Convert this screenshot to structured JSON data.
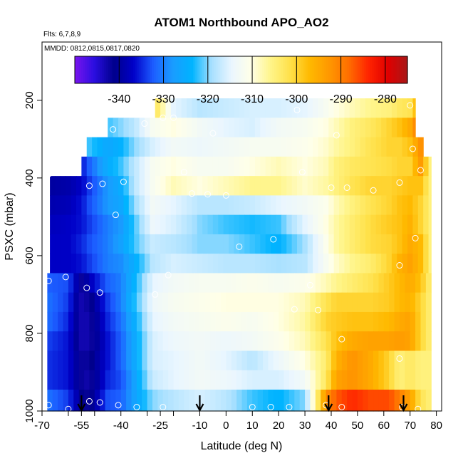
{
  "chart_data": {
    "type": "heatmap",
    "title": "ATOM1 Northbound APO_AO2",
    "annotations": [
      "Flts: 6,7,8,9",
      "MMDD: 0812,0815,0817,0820"
    ],
    "xlabel": "Latitude (deg N)",
    "ylabel": "PSXC (mbar)",
    "xlim": [
      -70,
      82
    ],
    "ylim": [
      1000,
      50
    ],
    "y_reversed": true,
    "x_ticks": [
      "-70",
      "-55",
      "-40",
      "-25",
      "-10",
      "0",
      "10",
      "20",
      "30",
      "40",
      "50",
      "60",
      "70",
      "80"
    ],
    "x_tick_values": [
      -70,
      -60,
      -55,
      -50,
      -40,
      -30,
      -25,
      -20,
      -10,
      0,
      10,
      20,
      30,
      40,
      50,
      60,
      70,
      80
    ],
    "x_tick_labels": [
      "-70",
      "",
      "-55",
      "",
      "-40",
      "",
      "-25",
      "",
      "-10",
      "0",
      "10",
      "20",
      "30",
      "40",
      "50",
      "60",
      "70",
      "80"
    ],
    "y_ticks": [
      "200",
      "400",
      "600",
      "800",
      "1000"
    ],
    "y_tick_values": [
      200,
      400,
      600,
      800,
      1000
    ],
    "colorbar": {
      "range": [
        -350,
        -275
      ],
      "ticks": [
        "-340",
        "-330",
        "-320",
        "-310",
        "-300",
        "-290",
        "-280"
      ],
      "tick_values": [
        -340,
        -330,
        -320,
        -310,
        -300,
        -290,
        -280
      ],
      "colors": [
        "#7a14ef",
        "#2a0ee0",
        "#00008c",
        "#0000c8",
        "#1c5cff",
        "#1a9cff",
        "#00b4ff",
        "#a8e0ff",
        "#eaf6ff",
        "#ffffe8",
        "#fff58a",
        "#ffe14a",
        "#ffb900",
        "#ff9800",
        "#ff6e00",
        "#ff2400",
        "#e00000",
        "#a81818"
      ]
    },
    "levels": [
      220,
      270,
      320,
      370,
      420,
      470,
      520,
      570,
      620,
      670,
      720,
      770,
      820,
      870,
      920,
      970
    ],
    "level_lat_ranges": [
      [
        -27,
        72
      ],
      [
        -45,
        72
      ],
      [
        -53,
        75
      ],
      [
        -55,
        78
      ],
      [
        -67,
        78
      ],
      [
        -67,
        78
      ],
      [
        -67,
        78
      ],
      [
        -67,
        78
      ],
      [
        -67,
        78
      ],
      [
        -68,
        78
      ],
      [
        -68,
        78
      ],
      [
        -68,
        78
      ],
      [
        -68,
        78
      ],
      [
        -68,
        78
      ],
      [
        -68,
        78
      ],
      [
        -68,
        78
      ]
    ],
    "profile_latitudes": [
      -70,
      -60,
      -55,
      -52,
      -45,
      -40,
      -35,
      -28,
      -20,
      -10,
      0,
      10,
      20,
      30,
      38,
      42,
      48,
      55,
      62,
      66,
      70,
      74,
      78
    ],
    "values": [
      [
        -300,
        -300,
        -300,
        -300,
        -300,
        -300,
        -300,
        -300,
        -315,
        -318,
        -317,
        -316,
        -316,
        -315,
        -312,
        -310,
        -308,
        -306,
        -305,
        -303,
        -302,
        -294,
        -290
      ],
      [
        -300,
        -300,
        -300,
        -300,
        -322,
        -320,
        -318,
        -312,
        -310,
        -313,
        -315,
        -316,
        -313,
        -312,
        -310,
        -308,
        -305,
        -303,
        -300,
        -298,
        -295,
        -288,
        -288
      ],
      [
        -300,
        -300,
        -300,
        -322,
        -326,
        -324,
        -320,
        -316,
        -313,
        -314,
        -313,
        -312,
        -312,
        -311,
        -309,
        -307,
        -305,
        -302,
        -300,
        -300,
        -298,
        -292,
        -300
      ],
      [
        -339,
        -338,
        -336,
        -332,
        -325,
        -322,
        -318,
        -312,
        -310,
        -312,
        -312,
        -310,
        -308,
        -310,
        -308,
        -305,
        -303,
        -302,
        -301,
        -300,
        -300,
        -293,
        -305
      ],
      [
        -340,
        -339,
        -337,
        -334,
        -328,
        -325,
        -318,
        -312,
        -308,
        -310,
        -308,
        -306,
        -306,
        -309,
        -307,
        -305,
        -302,
        -300,
        -300,
        -299,
        -298,
        -298,
        -305
      ],
      [
        -339,
        -338,
        -336,
        -333,
        -328,
        -326,
        -320,
        -313,
        -315,
        -318,
        -318,
        -317,
        -315,
        -313,
        -311,
        -308,
        -305,
        -302,
        -300,
        -298,
        -297,
        -300,
        -305
      ],
      [
        -338,
        -337,
        -336,
        -334,
        -330,
        -328,
        -322,
        -314,
        -316,
        -320,
        -322,
        -323,
        -322,
        -315,
        -310,
        -307,
        -304,
        -301,
        -299,
        -298,
        -296,
        -300,
        -305
      ],
      [
        -337,
        -337,
        -335,
        -333,
        -330,
        -327,
        -322,
        -317,
        -318,
        -320,
        -320,
        -322,
        -324,
        -319,
        -311,
        -307,
        -304,
        -301,
        -300,
        -298,
        -295,
        -297,
        -305
      ],
      [
        -337,
        -337,
        -336,
        -334,
        -330,
        -329,
        -325,
        -318,
        -316,
        -317,
        -318,
        -318,
        -319,
        -318,
        -312,
        -309,
        -306,
        -304,
        -300,
        -296,
        -294,
        -297,
        -305
      ],
      [
        -332,
        -333,
        -342,
        -338,
        -332,
        -330,
        -324,
        -315,
        -313,
        -312,
        -312,
        -311,
        -312,
        -311,
        -308,
        -306,
        -304,
        -302,
        -299,
        -297,
        -295,
        -298,
        -305
      ],
      [
        -330,
        -334,
        -343,
        -342,
        -334,
        -330,
        -323,
        -314,
        -312,
        -311,
        -310,
        -310,
        -310,
        -308,
        -302,
        -300,
        -300,
        -300,
        -299,
        -297,
        -296,
        -300,
        -305
      ],
      [
        -330,
        -335,
        -343,
        -343,
        -335,
        -331,
        -325,
        -315,
        -313,
        -312,
        -311,
        -312,
        -310,
        -307,
        -300,
        -299,
        -298,
        -298,
        -297,
        -295,
        -294,
        -300,
        -305
      ],
      [
        -333,
        -336,
        -343,
        -343,
        -336,
        -332,
        -326,
        -316,
        -314,
        -313,
        -314,
        -313,
        -311,
        -308,
        -302,
        -298,
        -295,
        -294,
        -294,
        -293,
        -294,
        -300,
        -305
      ],
      [
        -334,
        -336,
        -342,
        -342,
        -336,
        -332,
        -326,
        -316,
        -315,
        -313,
        -315,
        -318,
        -314,
        -310,
        -304,
        -296,
        -292,
        -295,
        -300,
        -305,
        -303,
        -305,
        -305
      ],
      [
        -334,
        -336,
        -342,
        -343,
        -335,
        -333,
        -327,
        -317,
        -315,
        -313,
        -314,
        -316,
        -316,
        -313,
        -303,
        -294,
        -292,
        -295,
        -300,
        -305,
        -303,
        -305,
        -305
      ],
      [
        -330,
        -334,
        -341,
        -342,
        -333,
        -332,
        -327,
        -320,
        -318,
        -316,
        -318,
        -322,
        -324,
        -320,
        -292,
        -287,
        -284,
        -286,
        -286,
        -290,
        -294,
        -302,
        -305
      ]
    ],
    "obs_points": [
      [
        -67.5,
        390
      ],
      [
        -67.5,
        665
      ],
      [
        -67.5,
        985
      ],
      [
        -61,
        655
      ],
      [
        -60,
        995
      ],
      [
        -55,
        300
      ],
      [
        -52,
        420
      ],
      [
        -53,
        683
      ],
      [
        -52,
        975
      ],
      [
        -47,
        415
      ],
      [
        -48,
        695
      ],
      [
        -48,
        978
      ],
      [
        -43,
        275
      ],
      [
        -42,
        495
      ],
      [
        -41,
        985
      ],
      [
        -39,
        410
      ],
      [
        -34,
        990
      ],
      [
        -31,
        260
      ],
      [
        -27,
        700
      ],
      [
        -24,
        990
      ],
      [
        -22,
        650
      ],
      [
        -24,
        245
      ],
      [
        -20,
        245
      ],
      [
        -16,
        385
      ],
      [
        -13,
        440
      ],
      [
        -7,
        442
      ],
      [
        -5,
        285
      ],
      [
        0,
        445
      ],
      [
        5,
        577
      ],
      [
        10,
        990
      ],
      [
        17,
        990
      ],
      [
        18,
        558
      ],
      [
        24,
        990
      ],
      [
        26,
        738
      ],
      [
        27,
        225
      ],
      [
        29,
        385
      ],
      [
        32,
        676
      ],
      [
        35,
        740
      ],
      [
        38,
        985
      ],
      [
        40,
        425
      ],
      [
        42,
        290
      ],
      [
        44,
        815
      ],
      [
        44,
        990
      ],
      [
        46,
        425
      ],
      [
        56,
        432
      ],
      [
        66,
        412
      ],
      [
        66,
        625
      ],
      [
        66,
        865
      ],
      [
        67,
        990
      ],
      [
        70,
        213
      ],
      [
        71,
        325
      ],
      [
        72,
        555
      ],
      [
        73,
        995
      ],
      [
        74,
        380
      ]
    ],
    "arrows_lat": [
      -55,
      -10,
      39,
      67.5
    ]
  }
}
